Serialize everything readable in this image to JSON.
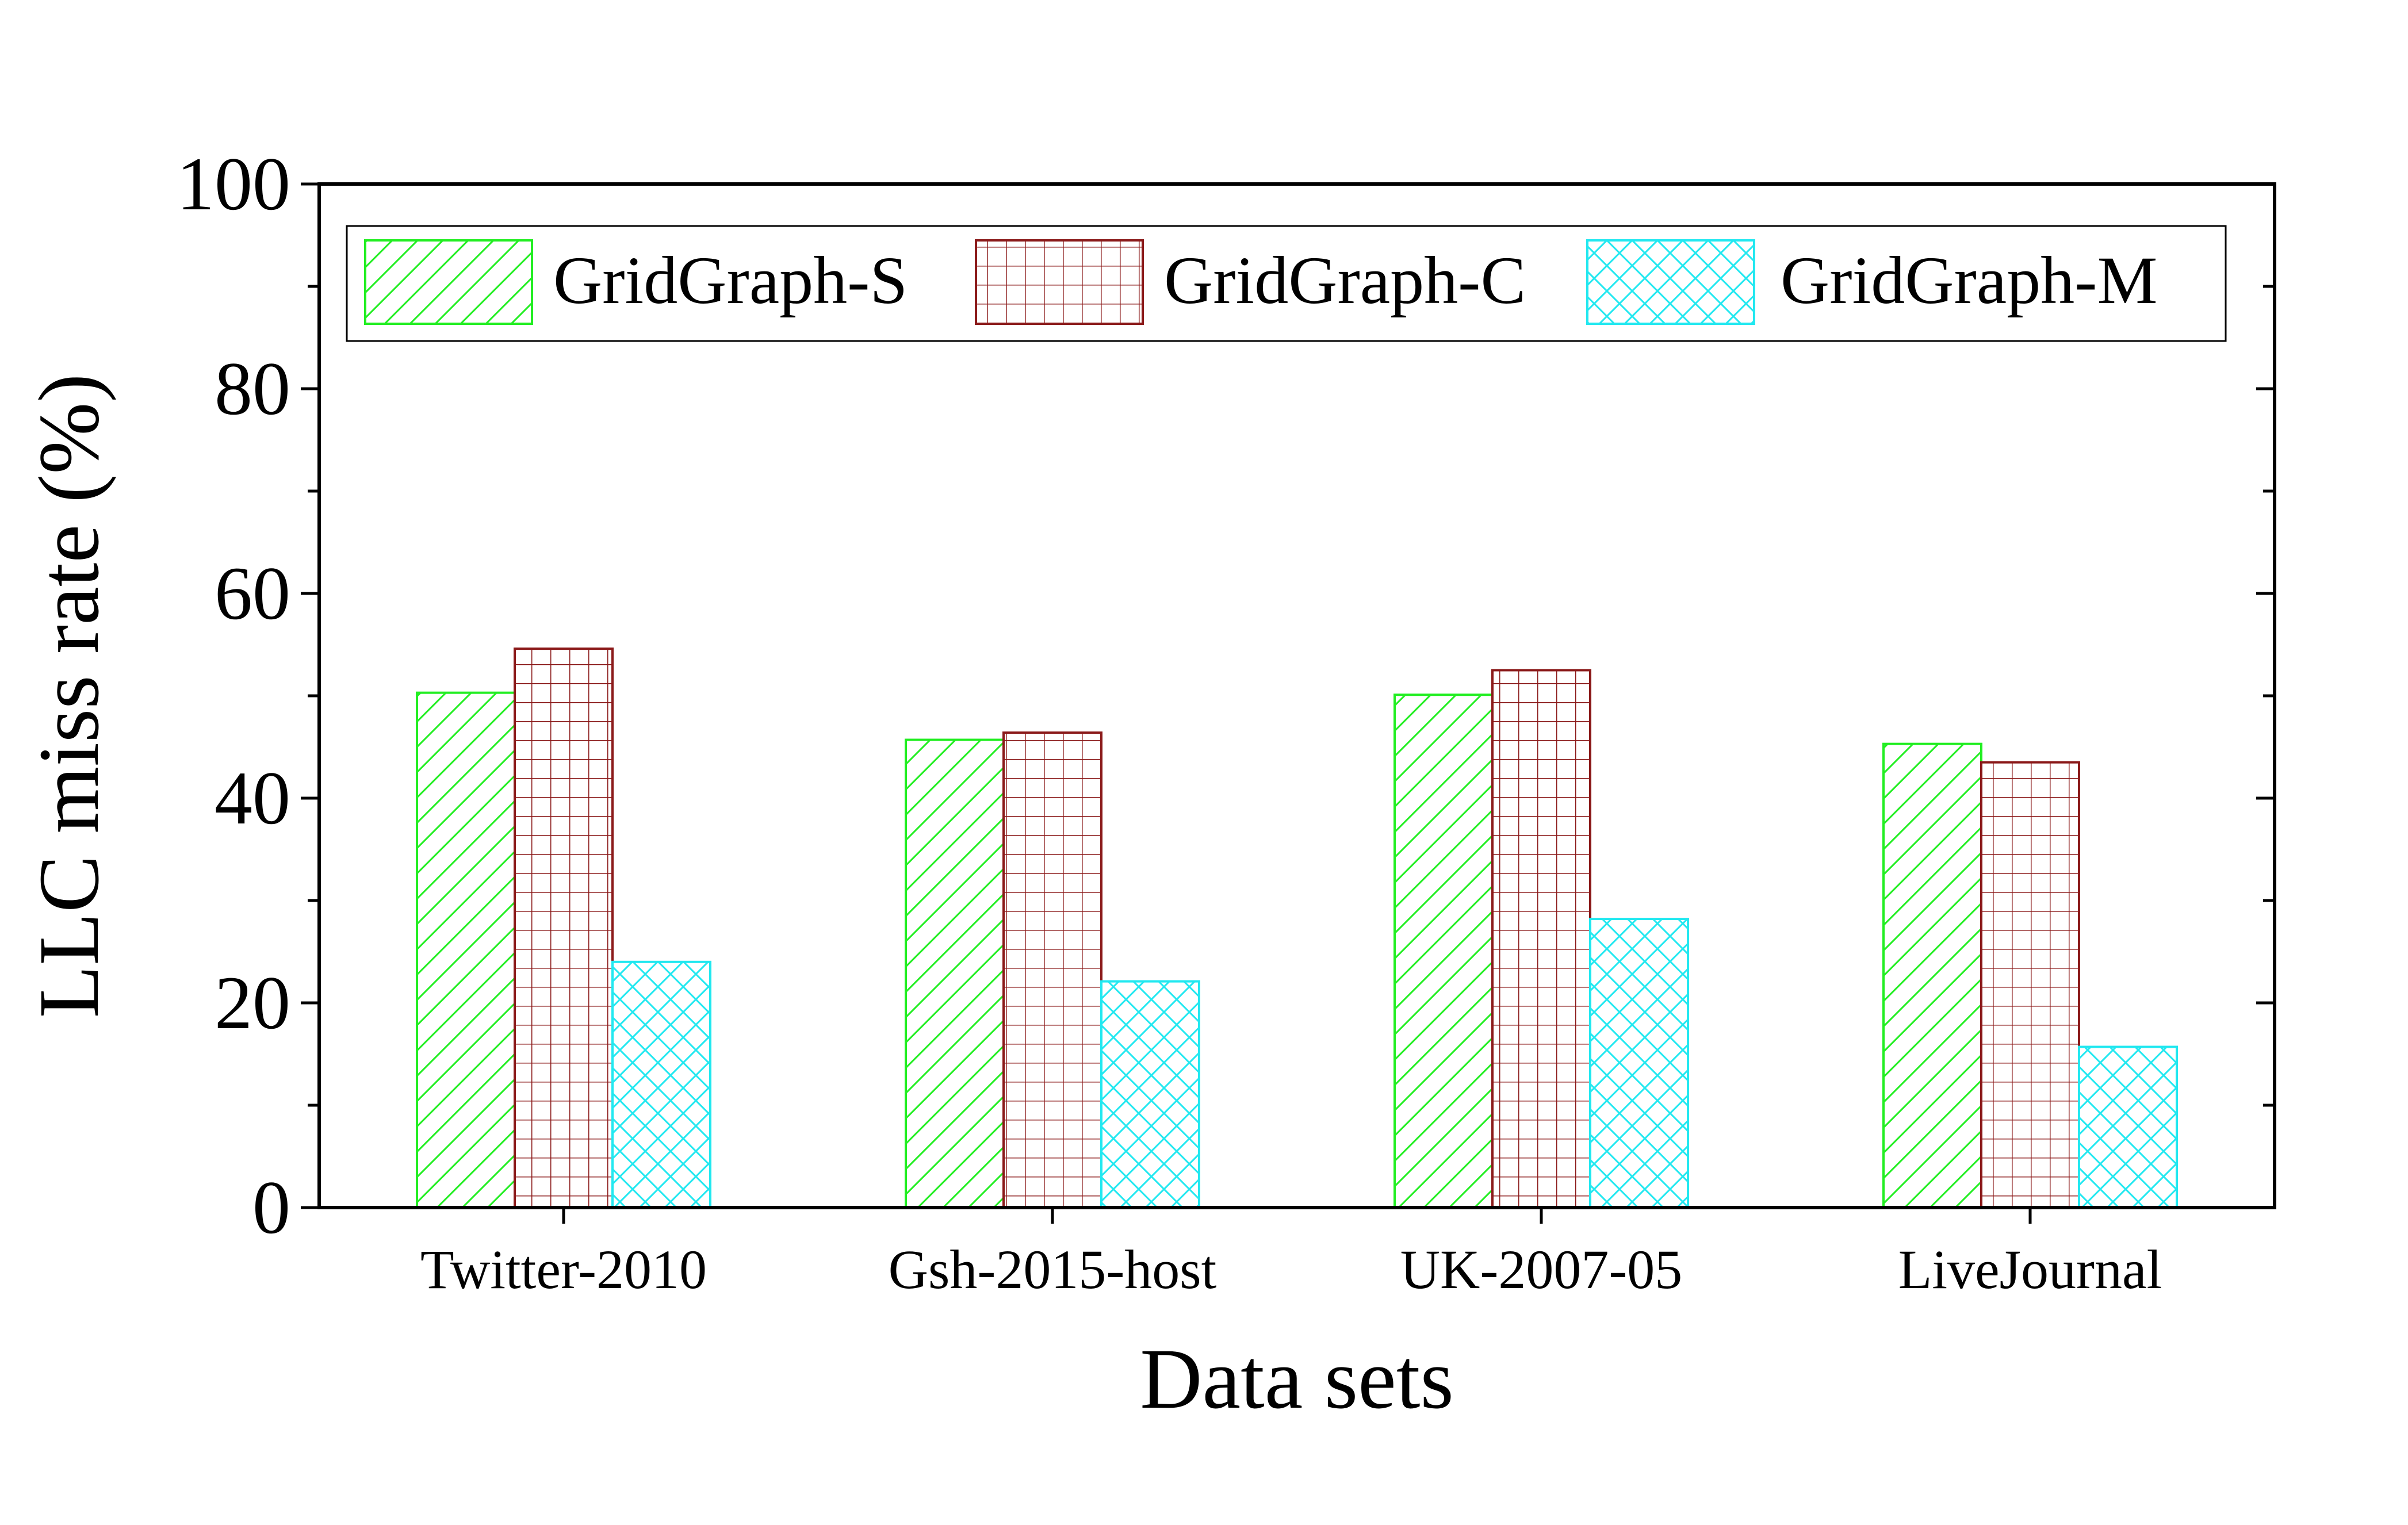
{
  "chart_data": {
    "type": "bar",
    "categories": [
      "Twitter-2010",
      "Gsh-2015-host",
      "UK-2007-05",
      "LiveJournal"
    ],
    "series": [
      {
        "name": "GridGraph-S",
        "values": [
          50.3,
          45.7,
          50.1,
          45.3
        ],
        "color": "#22ee22",
        "pattern": "diagonal-hatch"
      },
      {
        "name": "GridGraph-C",
        "values": [
          54.6,
          46.4,
          52.5,
          43.5
        ],
        "color": "#8b1a1a",
        "pattern": "grid"
      },
      {
        "name": "GridGraph-M",
        "values": [
          24.0,
          22.1,
          28.2,
          15.7
        ],
        "color": "#22e8f0",
        "pattern": "crosshatch"
      }
    ],
    "xlabel": "Data sets",
    "ylabel": "LLC miss rate (%)",
    "ylim": [
      0,
      100
    ],
    "yticks": [
      "0",
      "20",
      "40",
      "60",
      "80",
      "100"
    ],
    "grid": false,
    "legend": "top, inside plot, single row"
  }
}
